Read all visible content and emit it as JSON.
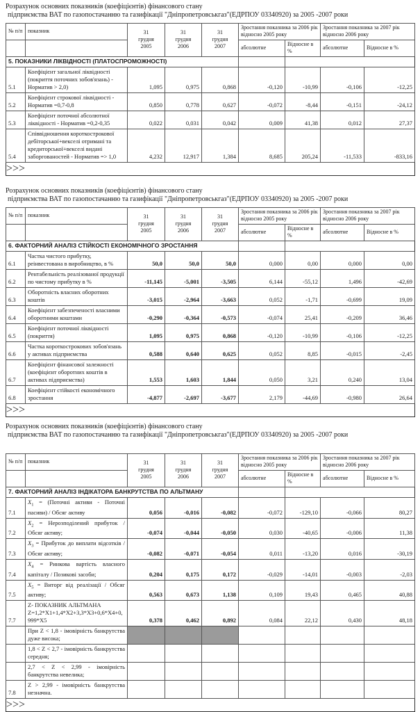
{
  "page": {
    "title_line1": "Розрахунок основних показників (коефіцієнтів) фінансового стану",
    "title_line2": "підприємства ВАТ по газопостачанню та газифікації \"Дніпропетровськгаз\"(ЕДРПОУ 03340920) за 2005 -2007 роки"
  },
  "header": {
    "num": "№ п/п",
    "indicator": "показник",
    "years": [
      "31 грудня 2005",
      "31 грудня 2006",
      "31 грудня 2007"
    ],
    "group_2006": "Зростання показника за 2006 рік відносно 2005 року",
    "group_2007": "Зростання показника за 2007 рік відносно 2006 року",
    "absolute": "абсолютне",
    "relative": "Відносне в %"
  },
  "colors": {
    "highlight_gray": "#9b9b9b",
    "border": "#555555",
    "text": "#1a1a1a"
  },
  "tables": [
    {
      "section": "5. ПОКАЗНИКИ ЛІКВІДНОСТІ (ПЛАТОСПРОМОЖНОСТІ)",
      "values_bold": false,
      "justify_labels": false,
      "rows": [
        {
          "num": "5.1",
          "label": "Коефіцієнт загальної ліквідності (покриття поточних зобов'язань) - Норматив > 2,0)",
          "values": [
            "1,095",
            "0,975",
            "0,868"
          ],
          "growth": [
            "-0,120",
            "-10,99",
            "-0,106",
            "-12,25"
          ]
        },
        {
          "num": "5.2",
          "label": "Коефіцієнт строкової ліквідності - Норматив =0,7-0,8",
          "values": [
            "0,850",
            "0,778",
            "0,627"
          ],
          "growth": [
            "-0,072",
            "-8,44",
            "-0,151",
            "-24,12"
          ]
        },
        {
          "num": "5.3",
          "label": "Коефіцієнт поточної абсолютної ліквідності - Норматив =0,2-0,35",
          "values": [
            "0,022",
            "0,031",
            "0,042"
          ],
          "growth": [
            "0,009",
            "41,38",
            "0,012",
            "27,37"
          ]
        },
        {
          "num": "5.4",
          "label": "Співвідношення короткострокової дебіторської+векселі отримані та кредиторської+векселі видані заборгованостей - Норматив => 1,0",
          "values": [
            "4,232",
            "12,917",
            "1,384"
          ],
          "growth": [
            "8,685",
            "205,24",
            "-11,533",
            "-833,16"
          ]
        }
      ]
    },
    {
      "section": "6. ФАКТОРНИЙ АНАЛІЗ СТІЙКОСТІ ЕКОНОМІЧНОГО ЗРОСТАННЯ",
      "values_bold": true,
      "justify_labels": false,
      "rows": [
        {
          "num": "6.1",
          "label": "Частка чистого прибутку, реінвестована в виробництво, в %",
          "values": [
            "50,0",
            "50,0",
            "50,0"
          ],
          "growth": [
            "0,000",
            "0,00",
            "0,000",
            "0,00"
          ]
        },
        {
          "num": "6.2",
          "label": "Рентабельність реалізованої продукції по чистому прибутку в %",
          "values": [
            "-11,145",
            "-5,001",
            "-3,505"
          ],
          "growth": [
            "6,144",
            "-55,12",
            "1,496",
            "-42,69"
          ]
        },
        {
          "num": "6.3",
          "label": "Оборотність власних оборотних коштів",
          "values": [
            "-3,015",
            "-2,964",
            "-3,663"
          ],
          "growth": [
            "0,052",
            "-1,71",
            "-0,699",
            "19,09"
          ]
        },
        {
          "num": "6.4",
          "label": "Коефіцієнт забезпеченості власними оборотними коштами",
          "values": [
            "-0,290",
            "-0,364",
            "-0,573"
          ],
          "growth": [
            "-0,074",
            "25,41",
            "-0,209",
            "36,46"
          ]
        },
        {
          "num": "6.5",
          "label": "Коефіцієнт поточної ліквідності (покриття)",
          "values": [
            "1,095",
            "0,975",
            "0,868"
          ],
          "growth": [
            "-0,120",
            "-10,99",
            "-0,106",
            "-12,25"
          ]
        },
        {
          "num": "6.6",
          "label": "Частка короткострокових зобов'язань у активах підприємства",
          "values": [
            "0,588",
            "0,640",
            "0,625"
          ],
          "growth": [
            "0,052",
            "8,85",
            "-0,015",
            "-2,45"
          ]
        },
        {
          "num": "6.7",
          "label": "Коефіцієнт фінансової залежності (коефіцієнт оборотних коштів в активах підприємства)",
          "values": [
            "1,553",
            "1,603",
            "1,844"
          ],
          "growth": [
            "0,050",
            "3,21",
            "0,240",
            "13,04"
          ]
        },
        {
          "num": "6.8",
          "label": "Коефіцієнт стійкості економічного зростання",
          "values": [
            "-4,877",
            "-2,697",
            "-3,677"
          ],
          "growth": [
            "2,179",
            "-44,69",
            "-0,980",
            "26,64"
          ]
        }
      ]
    },
    {
      "section": "7. ФАКТОРНИЙ АНАЛІЗ ІНДІКАТОРА БАНКРУТСТВА ПО АЛЬТМАНУ",
      "values_bold": true,
      "justify_labels": true,
      "rows": [
        {
          "num": "7.1",
          "label": "X1 = (Поточні активи - Поточні пасиви) / Обсяг активу",
          "values": [
            "0,056",
            "-0,016",
            "-0,082"
          ],
          "growth": [
            "-0,072",
            "-129,10",
            "-0,066",
            "80,27"
          ]
        },
        {
          "num": "7.2",
          "label": "X2 = Нерозподілений прибуток / Обсяг активу;",
          "values": [
            "-0,074",
            "-0,044",
            "-0,050"
          ],
          "growth": [
            "0,030",
            "-40,65",
            "-0,006",
            "11,38"
          ]
        },
        {
          "num": "7.3",
          "label": "X3 = Прибуток до виплати відсотків / Обсяг активу;",
          "values": [
            "-0,082",
            "-0,071",
            "-0,054"
          ],
          "growth": [
            "0,011",
            "-13,20",
            "0,016",
            "-30,19"
          ]
        },
        {
          "num": "7.4",
          "label": "X4 = Ринкова вартість власного капіталу / Позикові засоби;",
          "values": [
            "0,204",
            "0,175",
            "0,172"
          ],
          "growth": [
            "-0,029",
            "-14,01",
            "-0,003",
            "-2,03"
          ]
        },
        {
          "num": "7.5",
          "label": "X5 = Виторг від реалізації / Обсяг активу;",
          "values": [
            "0,563",
            "0,673",
            "1,138"
          ],
          "growth": [
            "0,109",
            "19,43",
            "0,465",
            "40,88"
          ]
        },
        {
          "num": "7.7",
          "label": "Z- ПОКАЗНИК АЛЬТМАНА\nZ=1,2*X1+1,4*X2+3,3*X3+0,6*X4+0,999*X5",
          "values": [
            "0,378",
            "0,462",
            "0,892"
          ],
          "growth": [
            "0,084",
            "22,12",
            "0,430",
            "48,18"
          ]
        },
        {
          "num": "",
          "label": "При Z < 1,8 - імовірність банкрутства дуже висока;",
          "values": [
            "",
            "",
            ""
          ],
          "growth": [
            "",
            "",
            "",
            ""
          ],
          "gray": true
        },
        {
          "num": "",
          "label": "1,8 < Z < 2,7 - імовірність банкрутства середня;",
          "values": [
            "",
            "",
            ""
          ],
          "growth": [
            "",
            "",
            "",
            ""
          ]
        },
        {
          "num": "",
          "label": "2,7 < Z < 2,99 - імовірність банкрутства невелика;",
          "values": [
            "",
            "",
            ""
          ],
          "growth": [
            "",
            "",
            "",
            ""
          ]
        },
        {
          "num": "7.8",
          "label": "Z > 2,99 - імовірність банкрутства незначна.",
          "values": [
            "",
            "",
            ""
          ],
          "growth": [
            "",
            "",
            "",
            ""
          ]
        }
      ]
    }
  ]
}
